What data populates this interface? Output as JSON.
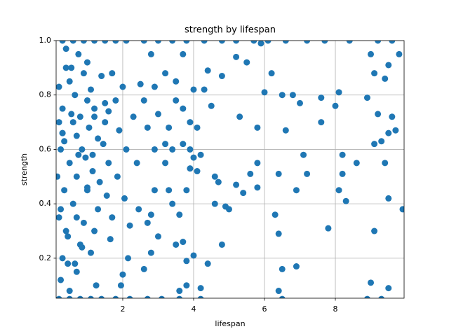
{
  "chart_data": {
    "type": "scatter",
    "title": "strength by lifespan",
    "x_label": "lifespan",
    "y_label": "strength",
    "color": "#1f77b4",
    "grid": true,
    "xlim": [
      0.12,
      9.94
    ],
    "ylim": [
      0.053,
      1.0
    ],
    "xticks": [
      2,
      4,
      6,
      8
    ],
    "yticks": [
      0.2,
      0.4,
      0.6,
      0.8,
      {
        "value": 1,
        "label": "1.0"
      }
    ],
    "x": [
      0.2,
      0.3,
      0.25,
      0.4,
      0.5,
      0.35,
      0.2,
      0.45,
      0.3,
      0.25,
      0.5,
      0.6,
      0.7,
      0.65,
      0.8,
      0.75,
      0.9,
      0.85,
      0.7,
      0.6,
      0.9,
      0.8,
      0.7,
      1.0,
      1.1,
      1.05,
      1.2,
      1.15,
      1.0,
      1.3,
      1.2,
      1.1,
      1.25,
      1.4,
      1.5,
      1.45,
      1.6,
      1.55,
      1.7,
      1.65,
      1.8,
      1.9,
      1.85,
      2.0,
      2.1,
      2.05,
      2.2,
      2.15,
      1.95,
      2.3,
      2.4,
      2.45,
      2.5,
      0.15,
      0.3,
      0.55,
      0.95,
      1.35,
      0.4,
      0.65,
      0.3,
      0.6,
      0.9,
      1.2,
      1.5,
      1.8,
      2.1,
      2.6,
      3.0,
      3.4,
      3.8,
      4.3,
      4.8,
      5.2,
      5.7,
      6.1,
      6.6,
      7.2,
      7.7,
      8.4,
      9.2,
      9.6,
      0.2,
      0.5,
      0.8,
      1.1,
      1.4,
      1.8,
      2.2,
      2.7,
      3.1,
      3.6,
      4.2,
      6.5,
      8.9,
      9.3,
      3.2,
      3.5,
      4.4,
      4.8,
      5.5,
      6.2,
      6.0,
      6.5,
      6.8,
      7.0,
      7.6,
      8.1,
      8.0,
      8.9,
      9.1,
      9.4,
      9.5,
      9.8,
      9.0,
      5.3,
      5.8,
      6.6,
      7.6,
      9.2,
      9.6,
      9.7,
      9.5,
      9.3,
      9.1,
      8.2,
      8.6,
      7.1,
      7.2,
      6.4,
      5.8,
      5.6,
      5.2,
      5.4,
      4.6,
      4.7,
      4.9,
      5.0,
      4.6,
      5.8,
      6.9,
      8.1,
      8.3,
      8.2,
      9.4,
      9.5,
      9.9,
      7.8,
      9.1,
      6.4,
      6.3,
      4.8,
      4.4,
      3.7,
      3.5,
      4.0,
      3.8,
      3.6,
      3.8,
      4.2,
      6.5,
      6.9,
      6.4,
      9.0,
      9.5,
      3.2,
      3.3,
      3.0,
      3.5,
      3.7,
      3.9,
      4.1,
      4.3,
      4.0,
      3.9,
      4.2,
      4.1,
      3.8,
      3.9,
      3.3,
      3.4,
      3.6,
      2.9,
      2.8,
      2.7,
      3.0,
      2.8,
      2.6,
      3.2,
      2.9,
      2.7,
      2.6,
      2.9,
      4.5,
      4.0,
      3.7,
      3.4,
      2.8,
      3.7,
      5.2,
      5.9,
      0.2,
      0.35,
      0.5,
      0.75,
      1.0,
      1.3,
      1.6,
      0.45,
      0.85,
      1.15,
      1.7,
      2.0,
      0.25,
      0.55,
      1.0,
      1.5,
      0.3,
      0.7,
      1.2,
      0.4
    ],
    "values": [
      0.83,
      0.75,
      0.6,
      0.9,
      0.55,
      0.45,
      0.35,
      0.28,
      0.2,
      0.12,
      0.08,
      0.7,
      0.65,
      0.8,
      0.72,
      0.95,
      0.88,
      0.6,
      0.5,
      0.4,
      0.33,
      0.25,
      0.15,
      0.78,
      0.82,
      0.68,
      0.75,
      0.58,
      0.45,
      0.38,
      0.3,
      0.22,
      0.1,
      0.87,
      0.7,
      0.62,
      0.55,
      0.43,
      0.35,
      0.27,
      0.78,
      0.67,
      0.5,
      0.83,
      0.6,
      0.42,
      0.32,
      0.2,
      0.1,
      0.72,
      0.55,
      0.38,
      0.84,
      0.5,
      0.66,
      0.73,
      0.57,
      0.48,
      0.3,
      0.18,
      1.0,
      1.0,
      1.0,
      1.0,
      1.0,
      1.0,
      1.0,
      1.0,
      1.0,
      1.0,
      1.0,
      1.0,
      1.0,
      1.0,
      1.0,
      1.0,
      1.0,
      1.0,
      1.0,
      1.0,
      1.0,
      1.0,
      0.05,
      0.05,
      0.05,
      0.05,
      0.05,
      0.05,
      0.05,
      0.05,
      0.05,
      0.05,
      0.05,
      0.05,
      0.05,
      0.05,
      0.88,
      0.85,
      0.89,
      0.87,
      0.92,
      0.88,
      0.81,
      0.8,
      0.8,
      0.77,
      0.79,
      0.81,
      0.76,
      0.79,
      0.88,
      0.86,
      0.91,
      0.95,
      0.95,
      0.72,
      0.68,
      0.67,
      0.7,
      0.73,
      0.72,
      0.67,
      0.66,
      0.63,
      0.62,
      0.58,
      0.55,
      0.58,
      0.51,
      0.51,
      0.55,
      0.51,
      0.47,
      0.44,
      0.5,
      0.48,
      0.39,
      0.38,
      0.4,
      0.46,
      0.45,
      0.45,
      0.41,
      0.51,
      0.55,
      0.42,
      0.38,
      0.31,
      0.3,
      0.29,
      0.36,
      0.25,
      0.18,
      0.26,
      0.25,
      0.21,
      0.19,
      0.08,
      0.1,
      0.09,
      0.16,
      0.17,
      0.08,
      0.11,
      0.09,
      0.55,
      0.68,
      0.73,
      0.78,
      0.75,
      0.7,
      0.68,
      0.82,
      0.82,
      0.6,
      0.58,
      0.52,
      0.45,
      0.53,
      0.45,
      0.4,
      0.36,
      0.45,
      0.36,
      0.33,
      0.28,
      0.22,
      0.16,
      0.62,
      0.6,
      0.68,
      0.78,
      0.83,
      0.76,
      0.57,
      0.62,
      0.6,
      0.95,
      0.95,
      0.94,
      0.99,
      0.7,
      0.63,
      0.85,
      0.58,
      0.92,
      0.64,
      0.74,
      0.18,
      0.24,
      0.52,
      0.88,
      0.14,
      0.38,
      0.9,
      0.46,
      0.77,
      0.66,
      0.35,
      0.72,
      0.97
    ]
  }
}
